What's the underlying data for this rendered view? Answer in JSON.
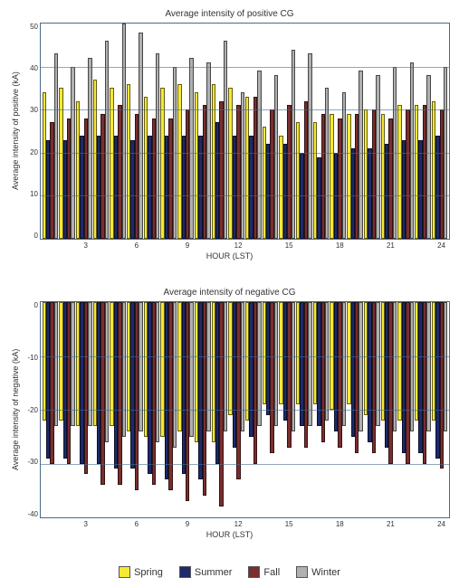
{
  "colors": {
    "spring": "#f5e935",
    "summer": "#1d2a6b",
    "fall": "#7a2e2e",
    "winter": "#b0b0b0",
    "axis": "#4a6a8a",
    "bg": "#ffffff"
  },
  "legend": {
    "items": [
      {
        "key": "spring",
        "label": "Spring"
      },
      {
        "key": "summer",
        "label": "Summer"
      },
      {
        "key": "fall",
        "label": "Fall"
      },
      {
        "key": "winter",
        "label": "Winter"
      }
    ]
  },
  "positive": {
    "title": "Average intensity of positive CG",
    "ylabel": "Average intensity of positive (kA)",
    "xlabel": "HOUR (LST)",
    "ylim": [
      0,
      50
    ],
    "ytick_step": 10,
    "xticks": [
      3,
      6,
      9,
      12,
      15,
      18,
      21,
      24
    ],
    "hours": [
      1,
      2,
      3,
      4,
      5,
      6,
      7,
      8,
      9,
      10,
      11,
      12,
      13,
      14,
      15,
      16,
      17,
      18,
      19,
      20,
      21,
      22,
      23,
      24
    ],
    "series": {
      "spring": [
        34,
        35,
        32,
        37,
        35,
        36,
        33,
        35,
        36,
        34,
        36,
        35,
        33,
        26,
        24,
        27,
        27,
        29,
        29,
        30,
        29,
        31,
        31,
        32
      ],
      "summer": [
        23,
        23,
        24,
        24,
        24,
        23,
        24,
        24,
        24,
        24,
        27,
        24,
        24,
        22,
        22,
        20,
        19,
        20,
        21,
        21,
        22,
        23,
        23,
        24
      ],
      "fall": [
        27,
        28,
        28,
        29,
        31,
        29,
        28,
        28,
        30,
        31,
        32,
        31,
        33,
        30,
        31,
        32,
        29,
        28,
        29,
        30,
        28,
        30,
        31,
        30
      ],
      "winter": [
        43,
        40,
        42,
        46,
        50,
        48,
        43,
        40,
        42,
        41,
        46,
        34,
        39,
        38,
        44,
        43,
        35,
        34,
        39,
        38,
        40,
        41,
        38,
        40
      ]
    }
  },
  "negative": {
    "title": "Average intensity of negative CG",
    "ylabel": "Average intensity of negative (kA)",
    "xlabel": "HOUR (LST)",
    "ylim": [
      -40,
      0
    ],
    "ytick_step": 10,
    "xticks": [
      3,
      6,
      9,
      12,
      15,
      18,
      21,
      24
    ],
    "hours": [
      1,
      2,
      3,
      4,
      5,
      6,
      7,
      8,
      9,
      10,
      11,
      12,
      13,
      14,
      15,
      16,
      17,
      18,
      19,
      20,
      21,
      22,
      23,
      24
    ],
    "series": {
      "spring": [
        -22,
        -22,
        -23,
        -23,
        -23,
        -24,
        -25,
        -25,
        -24,
        -26,
        -26,
        -21,
        -22,
        -19,
        -19,
        -19,
        -19,
        -20,
        -19,
        -21,
        -22,
        -22,
        -22,
        -22
      ],
      "summer": [
        -29,
        -29,
        -30,
        -30,
        -31,
        -31,
        -32,
        -33,
        -32,
        -33,
        -30,
        -27,
        -25,
        -21,
        -22,
        -23,
        -23,
        -24,
        -25,
        -26,
        -27,
        -28,
        -28,
        -29
      ],
      "fall": [
        -30,
        -30,
        -32,
        -34,
        -34,
        -35,
        -34,
        -35,
        -37,
        -36,
        -38,
        -33,
        -30,
        -28,
        -27,
        -27,
        -26,
        -27,
        -28,
        -28,
        -30,
        -30,
        -30,
        -31
      ],
      "winter": [
        -23,
        -23,
        -23,
        -26,
        -25,
        -24,
        -26,
        -27,
        -25,
        -24,
        -24,
        -24,
        -23,
        -23,
        -24,
        -23,
        -22,
        -23,
        -24,
        -23,
        -24,
        -24,
        -24,
        -24
      ]
    }
  }
}
